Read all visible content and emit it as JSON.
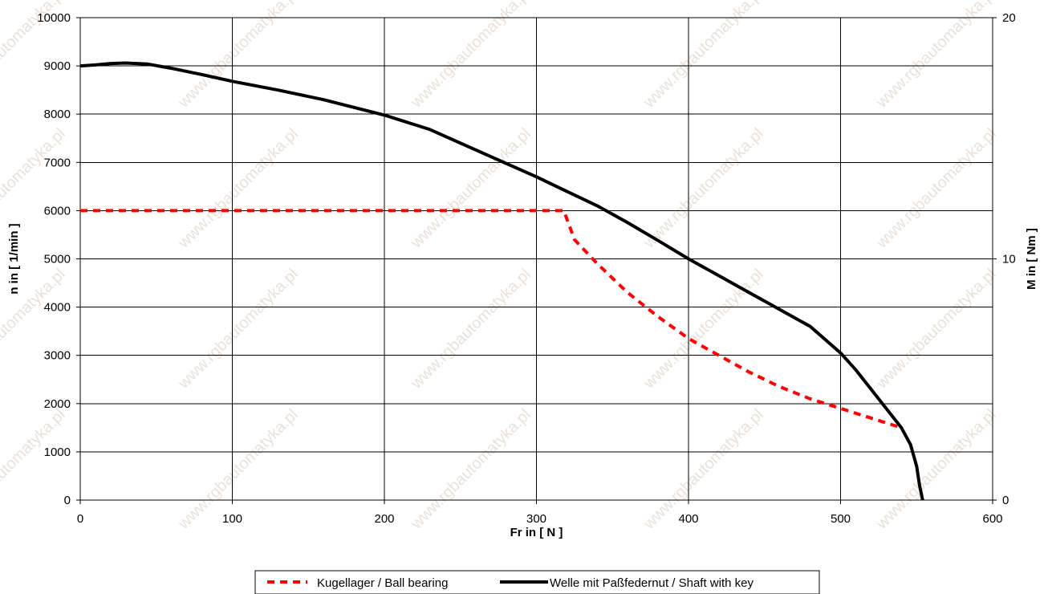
{
  "chart_data": {
    "type": "line",
    "title": "",
    "xlabel": "Fr in [ N ]",
    "ylabel": "n in [ 1/min ]",
    "y2label": "M in [ Nm ]",
    "xlim": [
      0,
      600
    ],
    "ylim": [
      0,
      10000
    ],
    "y2lim": [
      0,
      20
    ],
    "xticks": [
      "0",
      "100",
      "200",
      "300",
      "400",
      "500",
      "600"
    ],
    "yticks": [
      "0",
      "1000",
      "2000",
      "3000",
      "4000",
      "5000",
      "6000",
      "7000",
      "8000",
      "9000",
      "10000"
    ],
    "y2ticks": [
      "0",
      "10",
      "20"
    ],
    "grid": true,
    "legend_position": "bottom",
    "series": [
      {
        "name": "Kugellager / Ball bearing",
        "color": "#ff0000",
        "style": "dashed",
        "x": [
          0,
          100,
          200,
          300,
          318,
          325,
          340,
          360,
          380,
          400,
          420,
          440,
          460,
          480,
          500,
          520,
          540
        ],
        "y": [
          6000,
          6000,
          6000,
          6000,
          6000,
          5400,
          4900,
          4300,
          3800,
          3350,
          3000,
          2650,
          2350,
          2100,
          1900,
          1700,
          1500
        ]
      },
      {
        "name": "Welle mit Paßfedernut / Shaft with key",
        "color": "#000000",
        "style": "solid",
        "x": [
          0,
          10,
          20,
          30,
          44,
          60,
          80,
          100,
          130,
          160,
          200,
          230,
          250,
          275,
          300,
          320,
          340,
          360,
          380,
          400,
          420,
          440,
          460,
          480,
          500,
          510,
          520,
          530,
          540,
          546,
          550,
          552,
          554
        ],
        "y": [
          9000,
          9020,
          9050,
          9060,
          9040,
          8950,
          8820,
          8680,
          8500,
          8300,
          7980,
          7680,
          7400,
          7050,
          6700,
          6400,
          6100,
          5750,
          5380,
          5000,
          4650,
          4300,
          3950,
          3600,
          3050,
          2700,
          2300,
          1900,
          1500,
          1150,
          700,
          300,
          0
        ]
      }
    ]
  }
}
